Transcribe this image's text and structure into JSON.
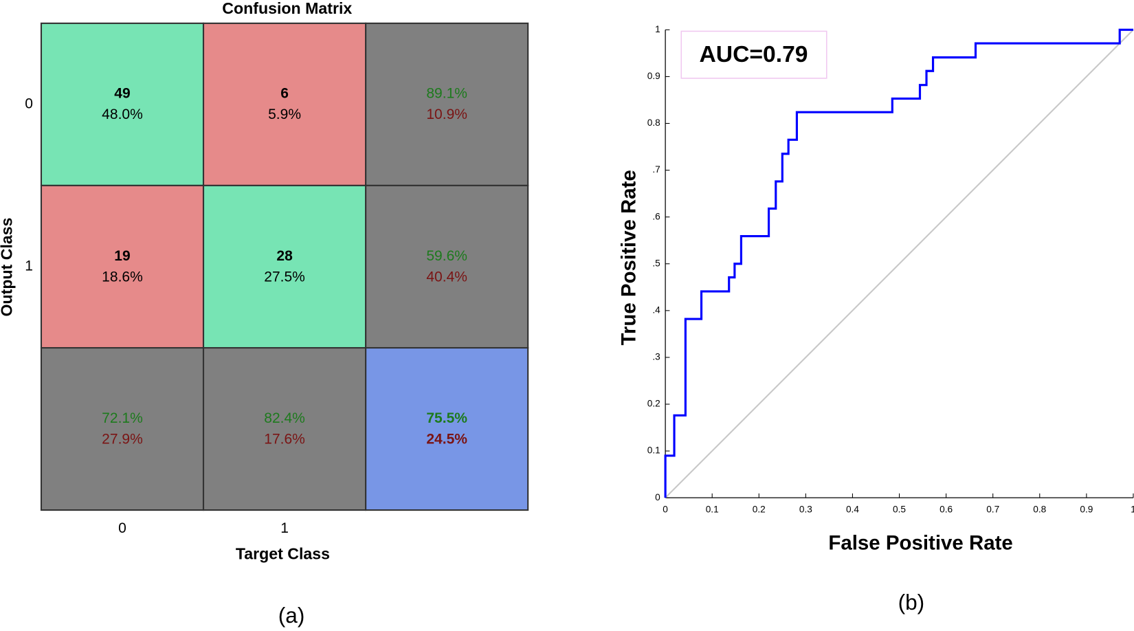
{
  "chart_data": [
    {
      "type": "confusion_matrix",
      "title": "Confusion Matrix",
      "xlabel": "Target Class",
      "ylabel": "Output Class",
      "categories": [
        "0",
        "1"
      ],
      "counts": [
        [
          49,
          6
        ],
        [
          19,
          28
        ]
      ],
      "percents": {
        "values": [
          [
            48.0,
            5.9
          ],
          [
            18.6,
            27.5
          ]
        ],
        "value_labels": [
          [
            "48.0%",
            "5.9%"
          ],
          [
            "18.6%",
            "27.5%"
          ]
        ]
      },
      "row_summary": {
        "values": [
          [
            89.1,
            10.9
          ],
          [
            59.6,
            40.4
          ]
        ],
        "value_labels": [
          [
            "89.1%",
            "10.9%"
          ],
          [
            "59.6%",
            "40.4%"
          ]
        ]
      },
      "column_summary": {
        "values": [
          [
            72.1,
            27.9
          ],
          [
            82.4,
            17.6
          ]
        ],
        "value_labels": [
          [
            "72.1%",
            "27.9%"
          ],
          [
            "82.4%",
            "17.6%"
          ]
        ]
      },
      "total": {
        "values": [
          75.5,
          24.5
        ],
        "value_labels": [
          "75.5%",
          "24.5%"
        ]
      },
      "colors": {
        "correct": "#77e4b4",
        "incorrect": "#e68a8a",
        "summary": "#808080",
        "total": "#7896e6",
        "good_text": "#1d7a1d",
        "bad_text": "#7a1414"
      },
      "panel_label": "(a)"
    },
    {
      "type": "line",
      "xlabel": "False Positive Rate",
      "ylabel": "True Positive Rate",
      "xlim": [
        0,
        1
      ],
      "ylim": [
        0,
        1
      ],
      "xticks": [
        0,
        0.1,
        0.2,
        0.3,
        0.4,
        0.5,
        0.6,
        0.7,
        0.8,
        0.9,
        1
      ],
      "yticks": [
        0,
        0.1,
        0.2,
        {
          "value": 0.3,
          "label": ".3"
        },
        {
          "value": 0.4,
          "label": ".4"
        },
        {
          "value": 0.5,
          "label": ".5"
        },
        {
          "value": 0.6,
          "label": ".6"
        },
        {
          "value": 0.7,
          "label": ".7"
        },
        0.8,
        0.9,
        1
      ],
      "annotation": "AUC=0.79",
      "series": [
        {
          "color": "#c8c8c8",
          "x": [
            0,
            1
          ],
          "values": [
            0,
            1
          ]
        },
        {
          "color": "#0000ff",
          "x": [
            0,
            0,
            0.019,
            0.019,
            0.043,
            0.043,
            0.077,
            0.077,
            0.136,
            0.136,
            0.148,
            0.148,
            0.162,
            0.162,
            0.221,
            0.221,
            0.236,
            0.236,
            0.25,
            0.25,
            0.263,
            0.263,
            0.281,
            0.281,
            0.485,
            0.485,
            0.544,
            0.544,
            0.558,
            0.558,
            0.572,
            0.572,
            0.663,
            0.663,
            0.971,
            0.971,
            1
          ],
          "values": [
            0,
            0.09,
            0.09,
            0.176,
            0.176,
            0.382,
            0.382,
            0.441,
            0.441,
            0.471,
            0.471,
            0.5,
            0.5,
            0.559,
            0.559,
            0.618,
            0.618,
            0.676,
            0.676,
            0.735,
            0.735,
            0.765,
            0.765,
            0.824,
            0.824,
            0.853,
            0.853,
            0.882,
            0.882,
            0.912,
            0.912,
            0.941,
            0.941,
            0.971,
            0.971,
            1,
            1
          ]
        }
      ],
      "panel_label": "(b)"
    }
  ]
}
